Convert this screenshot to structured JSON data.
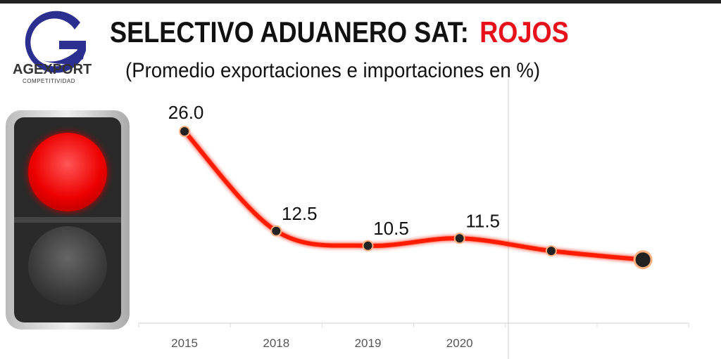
{
  "logo": {
    "name": "AGEXPORT",
    "subtitle": "COMPETITIVIDAD"
  },
  "header": {
    "title": "SELECTIVO ADUANERO SAT:",
    "title_highlight": "ROJOS",
    "subtitle": "(Promedio exportaciones e importaciones en %)"
  },
  "colors": {
    "line": "#ff1a00",
    "accent": "#e8111b",
    "marker": "#222222"
  },
  "chart_data": {
    "type": "line",
    "title": "SELECTIVO ADUANERO SAT: ROJOS",
    "subtitle": "(Promedio exportaciones e importaciones en %)",
    "categories": [
      "2015",
      "2018",
      "2019",
      "2020",
      "",
      ""
    ],
    "values": [
      26.0,
      12.5,
      10.5,
      11.5,
      9.8,
      8.6
    ],
    "data_labels": [
      "26.0",
      "12.5",
      "10.5",
      "11.5",
      "",
      ""
    ],
    "ylim": [
      0,
      30
    ],
    "grid": false,
    "xlabel": "",
    "ylabel": ""
  }
}
